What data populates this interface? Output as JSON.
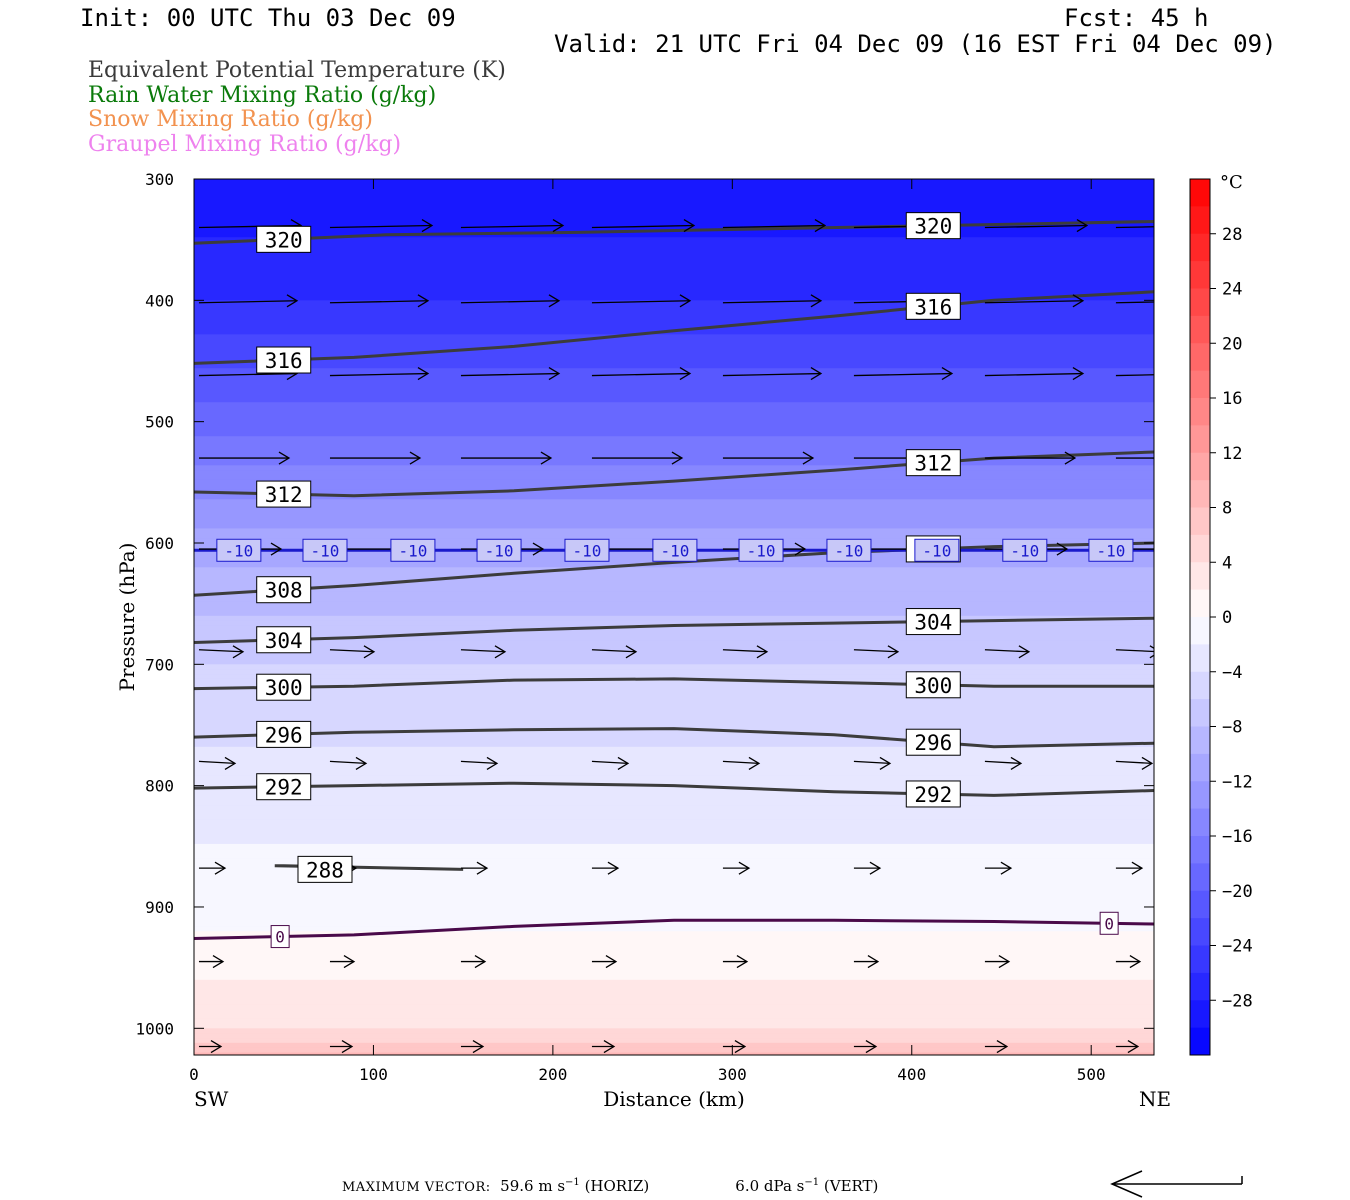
{
  "header": {
    "init": "Init: 00 UTC Thu 03 Dec 09",
    "fcst": "Fcst:  45 h",
    "valid": "Valid: 21 UTC Fri 04 Dec 09 (16 EST Fri 04 Dec 09)"
  },
  "fields": [
    {
      "label": "Equivalent Potential Temperature (K)",
      "color": "#3a3a3a"
    },
    {
      "label": "Rain Water Mixing Ratio (g/kg)",
      "color": "#0a7a0a"
    },
    {
      "label": "Snow Mixing Ratio (g/kg)",
      "color": "#f2924f"
    },
    {
      "label": "Graupel Mixing Ratio (g/kg)",
      "color": "#ee82ee"
    }
  ],
  "chart_data": {
    "type": "cross-section",
    "xlabel": "Distance (km)",
    "ylabel": "Pressure (hPa)",
    "xlim": [
      0,
      535
    ],
    "ylim": [
      1022,
      300
    ],
    "y_log_scale": false,
    "x_ticks": [
      0,
      100,
      200,
      300,
      400,
      500
    ],
    "y_ticks": [
      300,
      400,
      500,
      600,
      700,
      800,
      900,
      1000
    ],
    "x_end_labels": {
      "left": "SW",
      "right": "NE"
    },
    "colorbar": {
      "unit": "°C",
      "tick_labels": [
        28,
        24,
        20,
        16,
        12,
        8,
        4,
        0,
        -4,
        -8,
        -12,
        -16,
        -20,
        -24,
        -28
      ],
      "range": [
        -32,
        32
      ]
    },
    "temperature_fill": {
      "pressure": [
        300,
        400,
        500,
        600,
        700,
        800,
        900,
        1000,
        1022
      ],
      "celsius": [
        -30,
        -26,
        -19,
        -11,
        -6,
        -3,
        -1,
        4,
        8
      ]
    },
    "theta_e_contours": [
      {
        "value": 320,
        "pressure": [
          353,
          346,
          344,
          341,
          338,
          335
        ]
      },
      {
        "value": 316,
        "pressure": [
          452,
          447,
          438,
          425,
          413,
          400,
          393
        ]
      },
      {
        "value": 312,
        "pressure": [
          558,
          561,
          557,
          549,
          540,
          530,
          525
        ]
      },
      {
        "value": 308,
        "pressure": [
          643,
          635,
          625,
          616,
          608,
          603,
          600
        ]
      },
      {
        "value": 304,
        "pressure": [
          682,
          678,
          672,
          668,
          666,
          664,
          662
        ]
      },
      {
        "value": 300,
        "pressure": [
          720,
          718,
          713,
          712,
          715,
          718,
          718
        ]
      },
      {
        "value": 296,
        "pressure": [
          760,
          756,
          754,
          753,
          758,
          768,
          765
        ]
      },
      {
        "value": 292,
        "pressure": [
          802,
          800,
          798,
          800,
          805,
          808,
          804
        ]
      },
      {
        "value": 288,
        "pressure": [
          866,
          869,
          866
        ]
      }
    ],
    "isotherms": [
      {
        "value": -10,
        "pressure": [
          606,
          606,
          606,
          606,
          606,
          606,
          606
        ]
      },
      {
        "value": 0,
        "pressure": [
          926,
          923,
          916,
          911,
          911,
          912,
          914
        ]
      }
    ],
    "max_vector": {
      "horizontal": "59.6 m s⁻¹ (HORIZ)",
      "vertical": "6.0 dPa s⁻¹ (VERT)"
    }
  },
  "footer": {
    "max_vector_label": "MAXIMUM VECTOR:",
    "horiz_value": "59.6 m s",
    "horiz_unit": "(HORIZ)",
    "vert_value": "6.0 dPa s",
    "vert_unit": "(VERT)",
    "superscript": "−1"
  }
}
